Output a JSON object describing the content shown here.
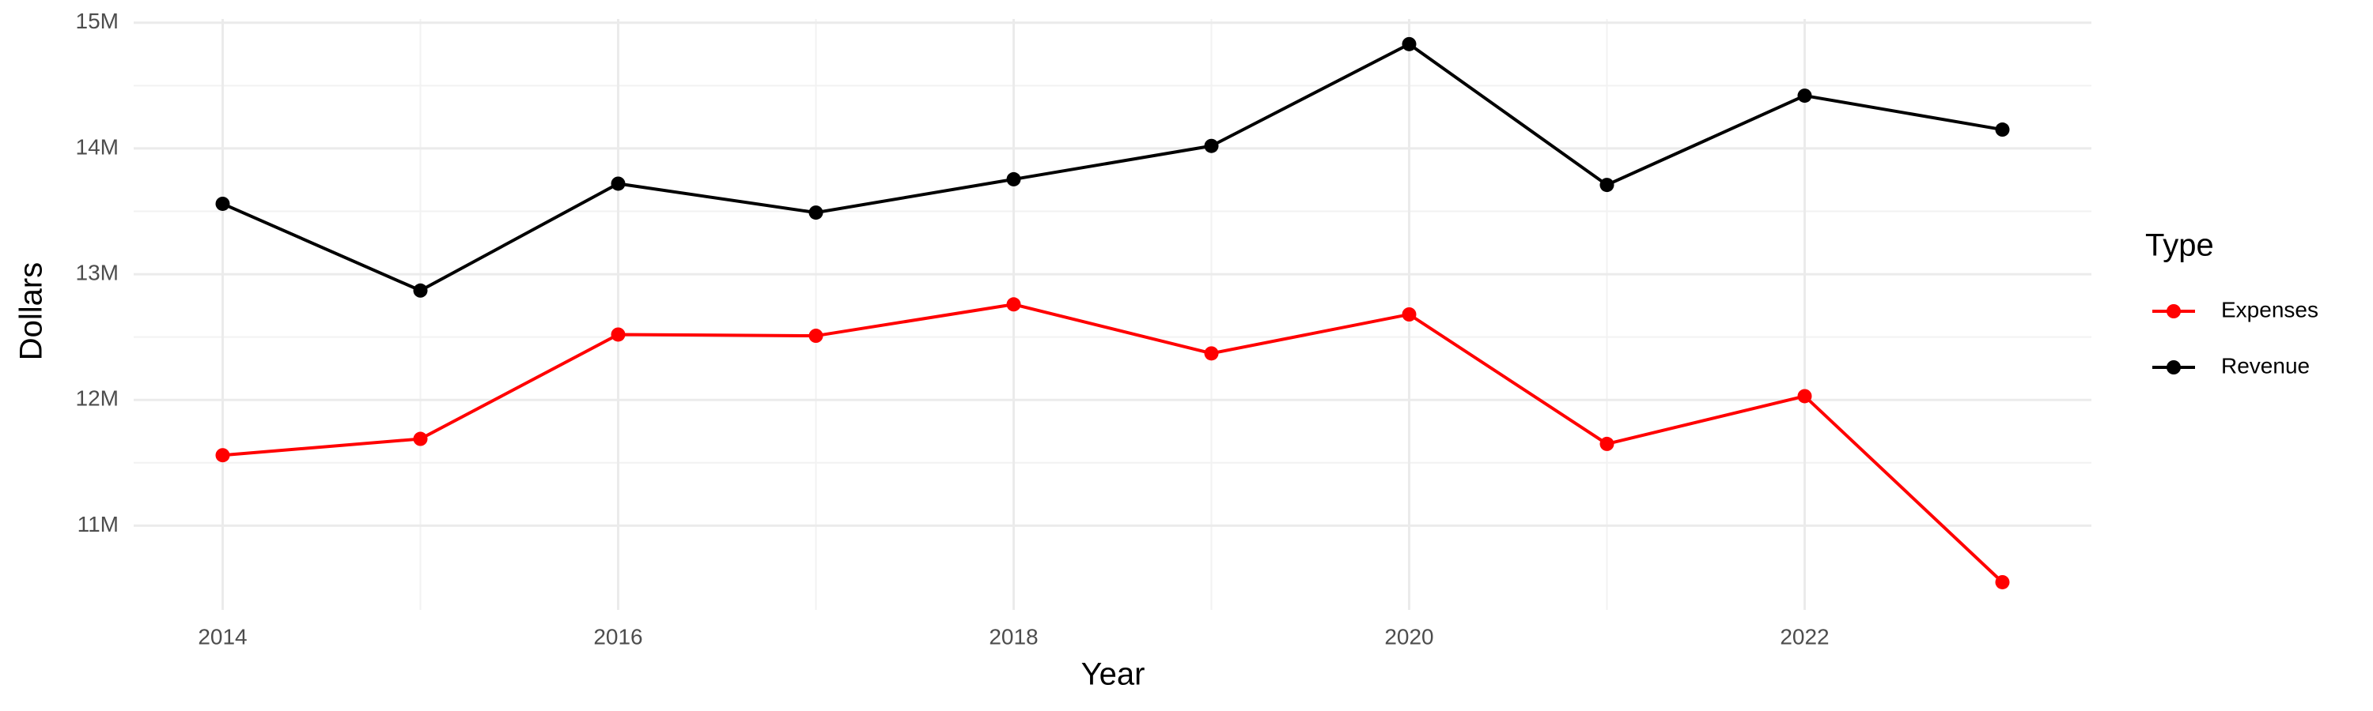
{
  "chart_data": {
    "type": "line",
    "x_label": "Year",
    "y_label": "Dollars",
    "legend_title": "Type",
    "x": [
      2014,
      2015,
      2016,
      2017,
      2018,
      2019,
      2020,
      2021,
      2022,
      2023
    ],
    "series": [
      {
        "name": "Expenses",
        "color": "#ff0000",
        "values": [
          11560000,
          11690000,
          12520000,
          12510000,
          12760000,
          12370000,
          12680000,
          11650000,
          12030000,
          10550000
        ]
      },
      {
        "name": "Revenue",
        "color": "#000000",
        "values": [
          13560000,
          12870000,
          13720000,
          13490000,
          13755000,
          14020000,
          14830000,
          13710000,
          14420000,
          14150000
        ]
      }
    ],
    "xlim": [
      2013.55,
      2023.45
    ],
    "xticks": [
      2014,
      2016,
      2018,
      2020,
      2022
    ],
    "ylim": [
      10330000,
      15030000
    ],
    "yticks": [
      {
        "value": 11000000,
        "label": "11M"
      },
      {
        "value": 12000000,
        "label": "12M"
      },
      {
        "value": 13000000,
        "label": "13M"
      },
      {
        "value": 14000000,
        "label": "14M"
      },
      {
        "value": 15000000,
        "label": "15M"
      }
    ],
    "grid": true,
    "legend": "right"
  }
}
